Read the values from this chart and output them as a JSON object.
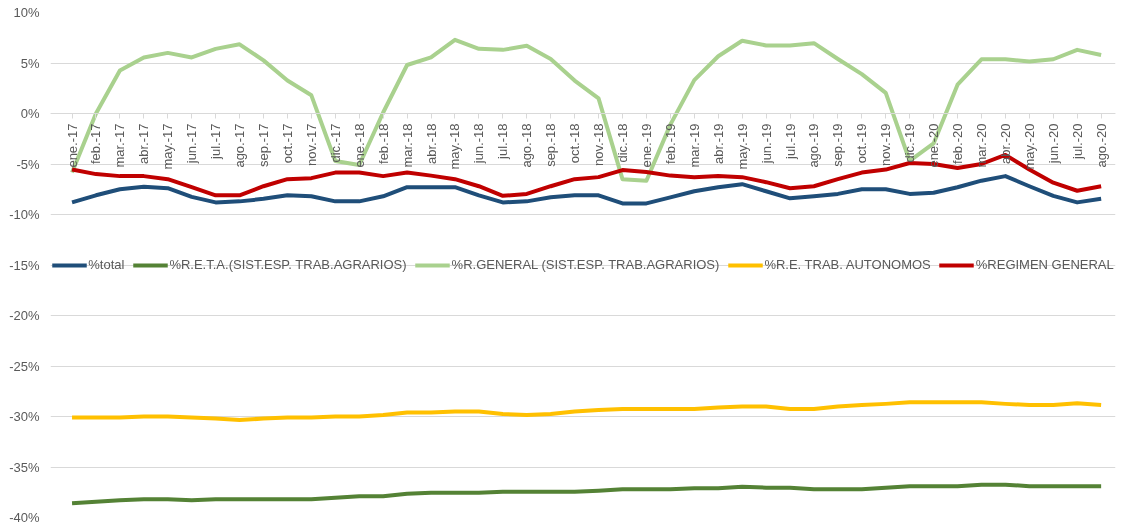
{
  "chart_data": {
    "type": "line",
    "categories": [
      "ene.-17",
      "feb.-17",
      "mar.-17",
      "abr.-17",
      "may.-17",
      "jun.-17",
      "jul.-17",
      "ago.-17",
      "sep.-17",
      "oct.-17",
      "nov.-17",
      "dic.-17",
      "ene.-18",
      "feb.-18",
      "mar.-18",
      "abr.-18",
      "may.-18",
      "jun.-18",
      "jul.-18",
      "ago.-18",
      "sep.-18",
      "oct.-18",
      "nov.-18",
      "dic.-18",
      "ene.-19",
      "feb.-19",
      "mar.-19",
      "abr.-19",
      "may.-19",
      "jun.-19",
      "jul.-19",
      "ago.-19",
      "sep.-19",
      "oct.-19",
      "nov.-19",
      "dic.-19",
      "ene.-20",
      "feb.-20",
      "mar.-20",
      "abr.-20",
      "may.-20",
      "jun.-20",
      "jul.-20",
      "ago.-20"
    ],
    "series": [
      {
        "name": "%total",
        "color": "#1f4e79",
        "values": [
          -8.8,
          -8.1,
          -7.5,
          -7.25,
          -7.4,
          -8.25,
          -8.8,
          -8.7,
          -8.45,
          -8.1,
          -8.2,
          -8.7,
          -8.7,
          -8.2,
          -7.3,
          -7.3,
          -7.3,
          -8.1,
          -8.8,
          -8.7,
          -8.3,
          -8.1,
          -8.1,
          -8.9,
          -8.9,
          -8.3,
          -7.7,
          -7.3,
          -7.0,
          -7.7,
          -8.4,
          -8.2,
          -7.96,
          -7.5,
          -7.5,
          -7.96,
          -7.85,
          -7.3,
          -6.65,
          -6.2,
          -7.2,
          -8.15,
          -8.8,
          -8.45
        ]
      },
      {
        "name": "%R.E.T.A.(SIST.ESP. TRAB.AGRARIOS)",
        "color": "#548235",
        "values": [
          -38.6,
          -38.45,
          -38.3,
          -38.2,
          -38.2,
          -38.3,
          -38.2,
          -38.2,
          -38.2,
          -38.2,
          -38.2,
          -38.05,
          -37.9,
          -37.9,
          -37.65,
          -37.55,
          -37.55,
          -37.55,
          -37.45,
          -37.45,
          -37.45,
          -37.45,
          -37.35,
          -37.2,
          -37.2,
          -37.2,
          -37.1,
          -37.1,
          -36.95,
          -37.05,
          -37.05,
          -37.2,
          -37.2,
          -37.2,
          -37.05,
          -36.9,
          -36.9,
          -36.9,
          -36.75,
          -36.75,
          -36.9,
          -36.9,
          -36.9,
          -36.9
        ]
      },
      {
        "name": "%R.GENERAL (SIST.ESP. TRAB.AGRARIOS)",
        "color": "#a9d18e",
        "values": [
          -5.85,
          0.0,
          4.26,
          5.55,
          6.0,
          5.55,
          6.4,
          6.85,
          5.26,
          3.26,
          1.8,
          -4.7,
          -5.1,
          0.1,
          4.8,
          5.55,
          7.3,
          6.4,
          6.3,
          6.7,
          5.4,
          3.26,
          1.5,
          -6.5,
          -6.65,
          -1.1,
          3.3,
          5.67,
          7.2,
          6.74,
          6.74,
          6.96,
          5.4,
          3.9,
          2.04,
          -4.7,
          -2.96,
          2.85,
          5.37,
          5.37,
          5.15,
          5.37,
          6.3,
          5.8
        ]
      },
      {
        "name": "%R.E. TRAB. AUTONOMOS",
        "color": "#ffc000",
        "values": [
          -30.1,
          -30.1,
          -30.1,
          -30.0,
          -30.0,
          -30.1,
          -30.2,
          -30.35,
          -30.2,
          -30.1,
          -30.1,
          -30.0,
          -30.0,
          -29.85,
          -29.6,
          -29.6,
          -29.5,
          -29.5,
          -29.75,
          -29.85,
          -29.75,
          -29.5,
          -29.35,
          -29.25,
          -29.25,
          -29.25,
          -29.25,
          -29.1,
          -29.0,
          -29.0,
          -29.25,
          -29.25,
          -29.0,
          -28.85,
          -28.75,
          -28.6,
          -28.6,
          -28.6,
          -28.6,
          -28.75,
          -28.85,
          -28.85,
          -28.7,
          -28.85
        ]
      },
      {
        "name": "%REGIMEN GENERAL",
        "color": "#c00000",
        "values": [
          -5.55,
          -6.0,
          -6.2,
          -6.2,
          -6.5,
          -7.3,
          -8.1,
          -8.1,
          -7.2,
          -6.5,
          -6.4,
          -5.85,
          -5.85,
          -6.2,
          -5.85,
          -6.15,
          -6.5,
          -7.2,
          -8.15,
          -7.96,
          -7.2,
          -6.5,
          -6.3,
          -5.6,
          -5.8,
          -6.15,
          -6.3,
          -6.2,
          -6.3,
          -6.8,
          -7.4,
          -7.2,
          -6.5,
          -5.85,
          -5.55,
          -4.9,
          -5.0,
          -5.4,
          -5.0,
          -4.1,
          -5.55,
          -6.85,
          -7.65,
          -7.2
        ]
      }
    ],
    "ylim": [
      -40,
      10
    ],
    "yticks": [
      {
        "value": -40,
        "label": "-40%"
      },
      {
        "value": -35,
        "label": "-35%"
      },
      {
        "value": -30,
        "label": "-30%"
      },
      {
        "value": -25,
        "label": "-25%"
      },
      {
        "value": -20,
        "label": "-20%"
      },
      {
        "value": -15,
        "label": "-15%"
      },
      {
        "value": -10,
        "label": "-10%"
      },
      {
        "value": -5,
        "label": "-5%"
      },
      {
        "value": 0,
        "label": "0%"
      },
      {
        "value": 5,
        "label": "5%"
      },
      {
        "value": 10,
        "label": "10%"
      }
    ],
    "grid": "y",
    "legend": "center",
    "marker": "none",
    "line_style": "solid"
  }
}
